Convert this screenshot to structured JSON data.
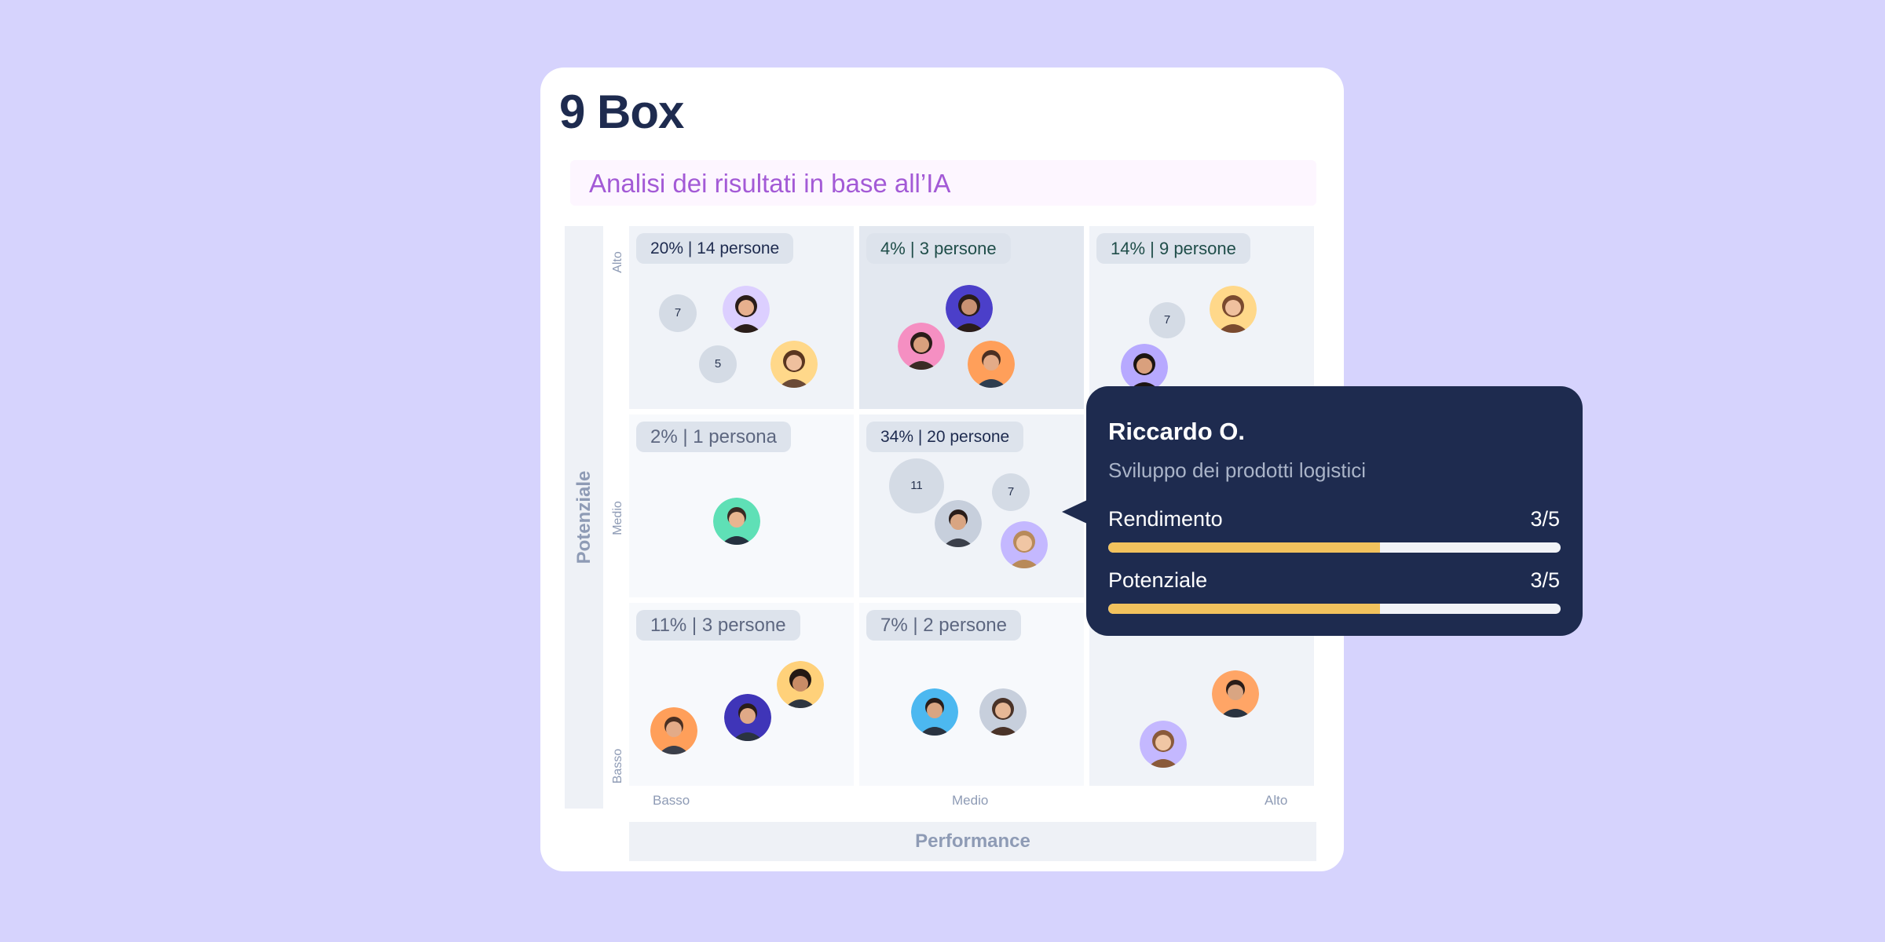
{
  "title": "9 Box",
  "subtitle": "Analisi dei risultati in base all’IA",
  "axes": {
    "y_label": "Potenziale",
    "x_label": "Performance",
    "y_ticks": [
      "Alto",
      "Medio",
      "Basso"
    ],
    "x_ticks": [
      "Basso",
      "Medio",
      "Alto"
    ]
  },
  "grid": {
    "rows": [
      {
        "cells": [
          {
            "badge": "20% | 14 persone",
            "counts": [
              "7",
              "5"
            ],
            "avatars": 2
          },
          {
            "badge": "4% | 3 persone",
            "counts": [],
            "avatars": 3
          },
          {
            "badge": "14% | 9 persone",
            "counts": [
              "7"
            ],
            "avatars": 2
          }
        ]
      },
      {
        "cells": [
          {
            "badge": "2% | 1 persona",
            "counts": [],
            "avatars": 1
          },
          {
            "badge": "34% | 20 persone",
            "counts": [
              "11",
              "7"
            ],
            "avatars": 2
          },
          {
            "badge": "",
            "counts": [],
            "avatars": 0
          }
        ]
      },
      {
        "cells": [
          {
            "badge": "11% | 3 persone",
            "counts": [],
            "avatars": 3
          },
          {
            "badge": "7% | 2 persone",
            "counts": [],
            "avatars": 2
          },
          {
            "badge": "",
            "counts": [],
            "avatars": 2
          }
        ]
      }
    ]
  },
  "tooltip": {
    "name": "Riccardo O.",
    "role": "Sviluppo dei prodotti logistici",
    "metrics": [
      {
        "label": "Rendimento",
        "value": "3/5",
        "fraction": 0.6
      },
      {
        "label": "Potenziale",
        "value": "3/5",
        "fraction": 0.6
      }
    ]
  },
  "colors": {
    "background": "#d6d3fd",
    "card": "#ffffff",
    "navy": "#1e2b4f",
    "accent_purple": "#a35ad6",
    "bar_fill": "#f2c25d"
  }
}
